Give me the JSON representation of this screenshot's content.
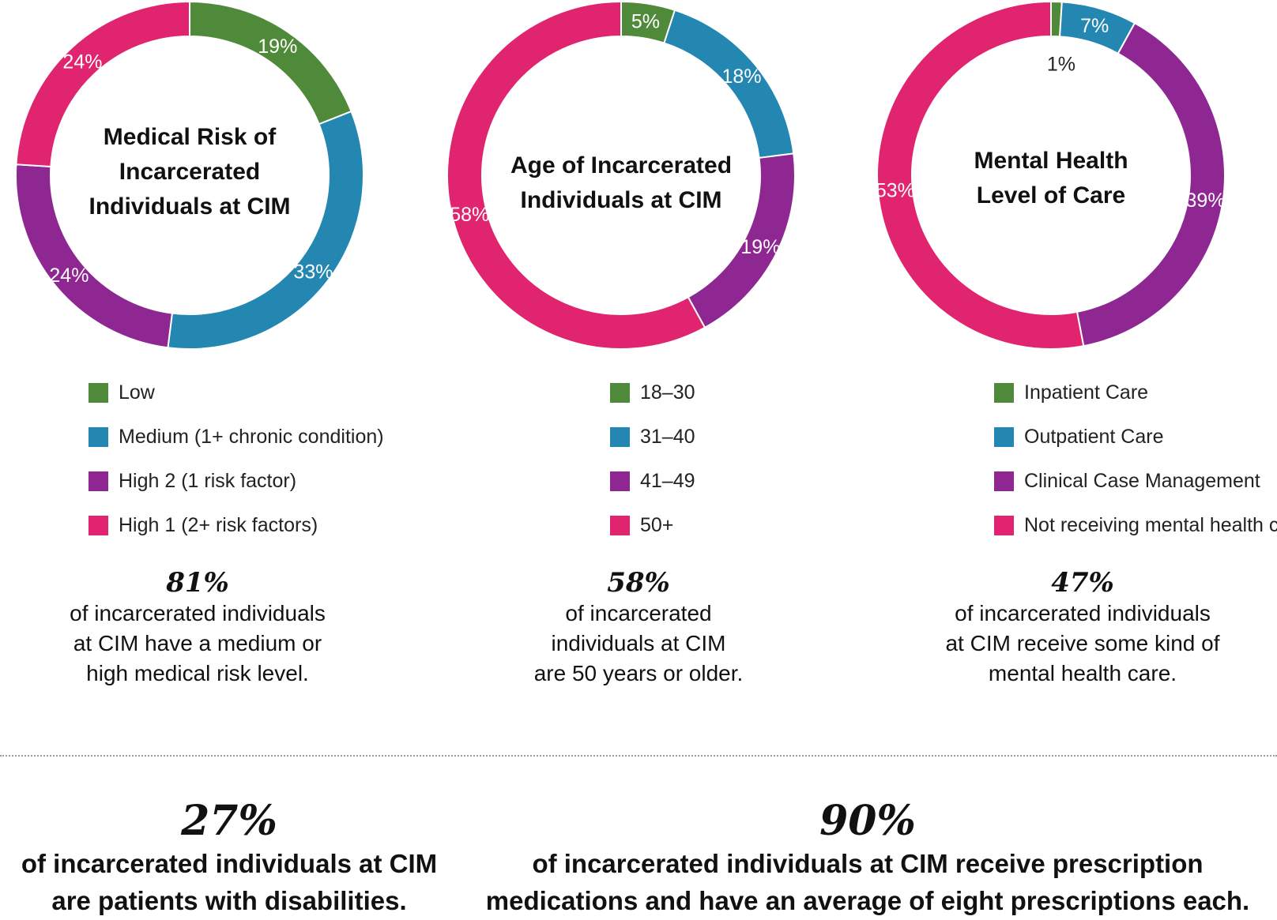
{
  "colors": {
    "green": "#4f8a3a",
    "blue": "#2487b2",
    "purple": "#8e2791",
    "pink": "#e0246f"
  },
  "chart_data": [
    {
      "type": "pie",
      "title_lines": [
        "Medical Risk of",
        "Incarcerated",
        "Individuals at CIM"
      ],
      "categories": [
        "Low",
        "Medium (1+ chronic condition)",
        "High 2 (1 risk factor)",
        "High 1 (2+ risk factors)"
      ],
      "values": [
        19,
        33,
        24,
        24
      ],
      "labels": [
        "19%",
        "33%",
        "24%",
        "24%"
      ],
      "colors": [
        "#4f8a3a",
        "#2487b2",
        "#8e2791",
        "#e0246f"
      ],
      "legend": "bottom"
    },
    {
      "type": "pie",
      "title_lines": [
        "Age of Incarcerated",
        "Individuals at CIM"
      ],
      "categories": [
        "18–30",
        "31–40",
        "41–49",
        "50+"
      ],
      "values": [
        5,
        18,
        19,
        58
      ],
      "labels": [
        "5%",
        "18%",
        "19%",
        "58%"
      ],
      "colors": [
        "#4f8a3a",
        "#2487b2",
        "#8e2791",
        "#e0246f"
      ],
      "legend": "bottom"
    },
    {
      "type": "pie",
      "title_lines": [
        "Mental Health",
        "Level of Care"
      ],
      "categories": [
        "Inpatient Care",
        "Outpatient Care",
        "Clinical Case Management",
        "Not receiving mental health care"
      ],
      "values": [
        1,
        7,
        39,
        53
      ],
      "labels": [
        "1%",
        "7%",
        "39%",
        "53%"
      ],
      "colors": [
        "#4f8a3a",
        "#2487b2",
        "#8e2791",
        "#e0246f"
      ],
      "legend": "bottom"
    }
  ],
  "stats": [
    {
      "value": "81%",
      "lines": [
        "of incarcerated individuals",
        "at CIM have a medium or",
        "high medical risk level."
      ]
    },
    {
      "value": "58%",
      "lines": [
        "of incarcerated",
        "individuals at CIM",
        "are 50 years or older."
      ]
    },
    {
      "value": "47%",
      "lines": [
        "of incarcerated individuals",
        "at CIM receive some kind of",
        "mental health care."
      ]
    }
  ],
  "bottom_stats": [
    {
      "value": "27%",
      "lines": [
        "of incarcerated individuals at CIM",
        "are patients with disabilities."
      ]
    },
    {
      "value": "90%",
      "lines": [
        "of incarcerated individuals at CIM receive prescription",
        "medications and have an average of eight prescriptions each."
      ]
    }
  ]
}
